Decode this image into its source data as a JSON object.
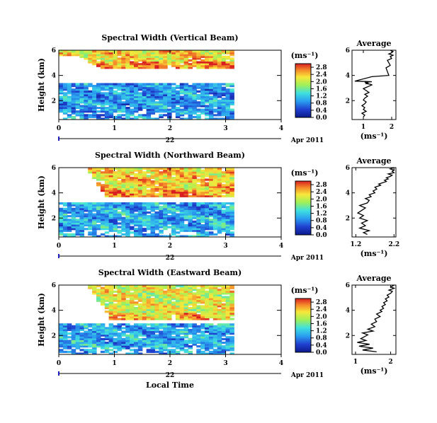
{
  "figure": {
    "date_label": "Apr 2011",
    "day_label": "22",
    "x_axis_label": "Local Time",
    "y_axis_label": "Height (km)",
    "colorbar_label": "(ms⁻¹)",
    "colorbar_ticks": [
      "0.0",
      "0.4",
      "0.8",
      "1.2",
      "1.6",
      "2.0",
      "2.4",
      "2.8"
    ],
    "average_title": "Average",
    "average_xlabel": "(ms⁻¹)"
  },
  "chart_data": [
    {
      "type": "heatmap",
      "title": "Spectral Width (Vertical Beam)",
      "xlabel": "",
      "ylabel": "Height (km)",
      "xlim": [
        0,
        4
      ],
      "ylim": [
        0.5,
        6
      ],
      "x_ticks": [
        0,
        1,
        2,
        3,
        4
      ],
      "y_ticks": [
        2,
        4,
        6
      ],
      "colorbar_range": [
        0,
        3.0
      ],
      "data_extent_x": [
        0,
        3.15
      ],
      "low_region_top_km": 3.4,
      "gap_km": [
        3.4,
        4.5
      ],
      "high_region_value": 2.3,
      "low_region_value": 0.9
    },
    {
      "type": "heatmap",
      "title": "Spectral Width (Northward Beam)",
      "xlabel": "",
      "ylabel": "Height (km)",
      "xlim": [
        0,
        4
      ],
      "ylim": [
        0.5,
        6
      ],
      "x_ticks": [
        0,
        1,
        2,
        3,
        4
      ],
      "y_ticks": [
        2,
        4,
        6
      ],
      "colorbar_range": [
        0,
        3.0
      ],
      "data_extent_x": [
        0,
        3.15
      ],
      "low_region_top_km": 3.3,
      "gap_km": [
        3.3,
        3.7
      ],
      "high_region_value": 2.3,
      "low_region_value": 1.0
    },
    {
      "type": "heatmap",
      "title": "Spectral Width (Eastward Beam)",
      "xlabel": "Local Time",
      "ylabel": "Height (km)",
      "xlim": [
        0,
        4
      ],
      "ylim": [
        0.5,
        6
      ],
      "x_ticks": [
        0,
        1,
        2,
        3,
        4
      ],
      "y_ticks": [
        2,
        4,
        6
      ],
      "colorbar_range": [
        0,
        3.0
      ],
      "data_extent_x": [
        0,
        3.15
      ],
      "low_region_top_km": 3.0,
      "gap_km": [
        3.0,
        3.2
      ],
      "high_region_value": 2.1,
      "low_region_value": 1.0
    },
    {
      "type": "line",
      "title": "Average",
      "xlabel": "(ms⁻¹)",
      "xlim": [
        0.6,
        2.15
      ],
      "x_ticks": [
        1,
        2
      ],
      "ylim": [
        0.5,
        6
      ],
      "y_ticks": [
        2,
        4,
        6
      ],
      "x": [
        1.0,
        1.05,
        0.95,
        1.1,
        1.0,
        1.05,
        0.95,
        1.05,
        1.1,
        1.0,
        1.05,
        1.15,
        1.05,
        1.2,
        1.1,
        1.0,
        1.1,
        1.2,
        1.3,
        1.25,
        1.1,
        1.15,
        1.05,
        1.3,
        0.7,
        1.3,
        1.9,
        1.85,
        1.8,
        1.95,
        1.9,
        1.85,
        2.0,
        1.95,
        2.05,
        1.9,
        2.0,
        2.05,
        1.95
      ],
      "y": [
        0.7,
        0.85,
        1.0,
        1.15,
        1.3,
        1.45,
        1.6,
        1.75,
        1.9,
        2.05,
        2.2,
        2.35,
        2.5,
        2.65,
        2.8,
        2.95,
        3.05,
        3.15,
        3.25,
        3.3,
        3.35,
        3.4,
        3.45,
        3.5,
        3.55,
        3.9,
        4.0,
        4.3,
        4.6,
        4.8,
        5.0,
        5.2,
        5.35,
        5.5,
        5.6,
        5.7,
        5.8,
        5.9,
        6.0
      ]
    },
    {
      "type": "line",
      "title": "Average",
      "xlabel": "(ms⁻¹)",
      "xlim": [
        1.1,
        2.25
      ],
      "x_ticks": [
        1.2,
        2.2
      ],
      "ylim": [
        0.5,
        6
      ],
      "y_ticks": [
        2,
        4,
        6
      ],
      "x": [
        1.5,
        1.4,
        1.55,
        1.3,
        1.45,
        1.35,
        1.5,
        1.3,
        1.4,
        1.25,
        1.35,
        1.45,
        1.3,
        1.5,
        1.55,
        1.45,
        1.6,
        1.55,
        1.7,
        1.65,
        1.75,
        1.7,
        1.85,
        1.8,
        1.9,
        2.0,
        1.95,
        2.05,
        2.0,
        2.1,
        2.15,
        2.05,
        2.2,
        2.15,
        2.2,
        2.1,
        2.2
      ],
      "y": [
        0.7,
        0.85,
        1.0,
        1.2,
        1.4,
        1.6,
        1.8,
        2.0,
        2.2,
        2.4,
        2.6,
        2.8,
        3.0,
        3.2,
        3.4,
        3.55,
        3.7,
        3.85,
        4.0,
        4.15,
        4.3,
        4.45,
        4.6,
        4.7,
        4.8,
        4.9,
        5.0,
        5.1,
        5.2,
        5.3,
        5.4,
        5.5,
        5.6,
        5.7,
        5.8,
        5.9,
        6.0
      ]
    },
    {
      "type": "line",
      "title": "Average",
      "xlabel": "(ms⁻¹)",
      "xlim": [
        0.9,
        2.15
      ],
      "x_ticks": [
        1,
        2
      ],
      "ylim": [
        0.5,
        6
      ],
      "y_ticks": [
        2,
        4,
        6
      ],
      "x": [
        1.6,
        1.2,
        1.5,
        1.1,
        1.4,
        1.05,
        1.3,
        1.15,
        1.25,
        1.35,
        1.2,
        1.5,
        1.35,
        1.55,
        1.45,
        1.6,
        1.55,
        1.7,
        1.6,
        1.75,
        1.7,
        1.8,
        1.75,
        1.85,
        1.8,
        1.9,
        1.85,
        1.95,
        1.9,
        2.0,
        2.05,
        1.95,
        2.1,
        2.0,
        2.1
      ],
      "y": [
        0.7,
        0.85,
        1.0,
        1.15,
        1.3,
        1.45,
        1.6,
        1.75,
        1.9,
        2.05,
        2.2,
        2.35,
        2.5,
        2.7,
        2.9,
        3.1,
        3.3,
        3.5,
        3.7,
        3.9,
        4.0,
        4.15,
        4.3,
        4.45,
        4.6,
        4.75,
        4.9,
        5.05,
        5.2,
        5.35,
        5.5,
        5.6,
        5.75,
        5.85,
        6.0
      ]
    }
  ]
}
